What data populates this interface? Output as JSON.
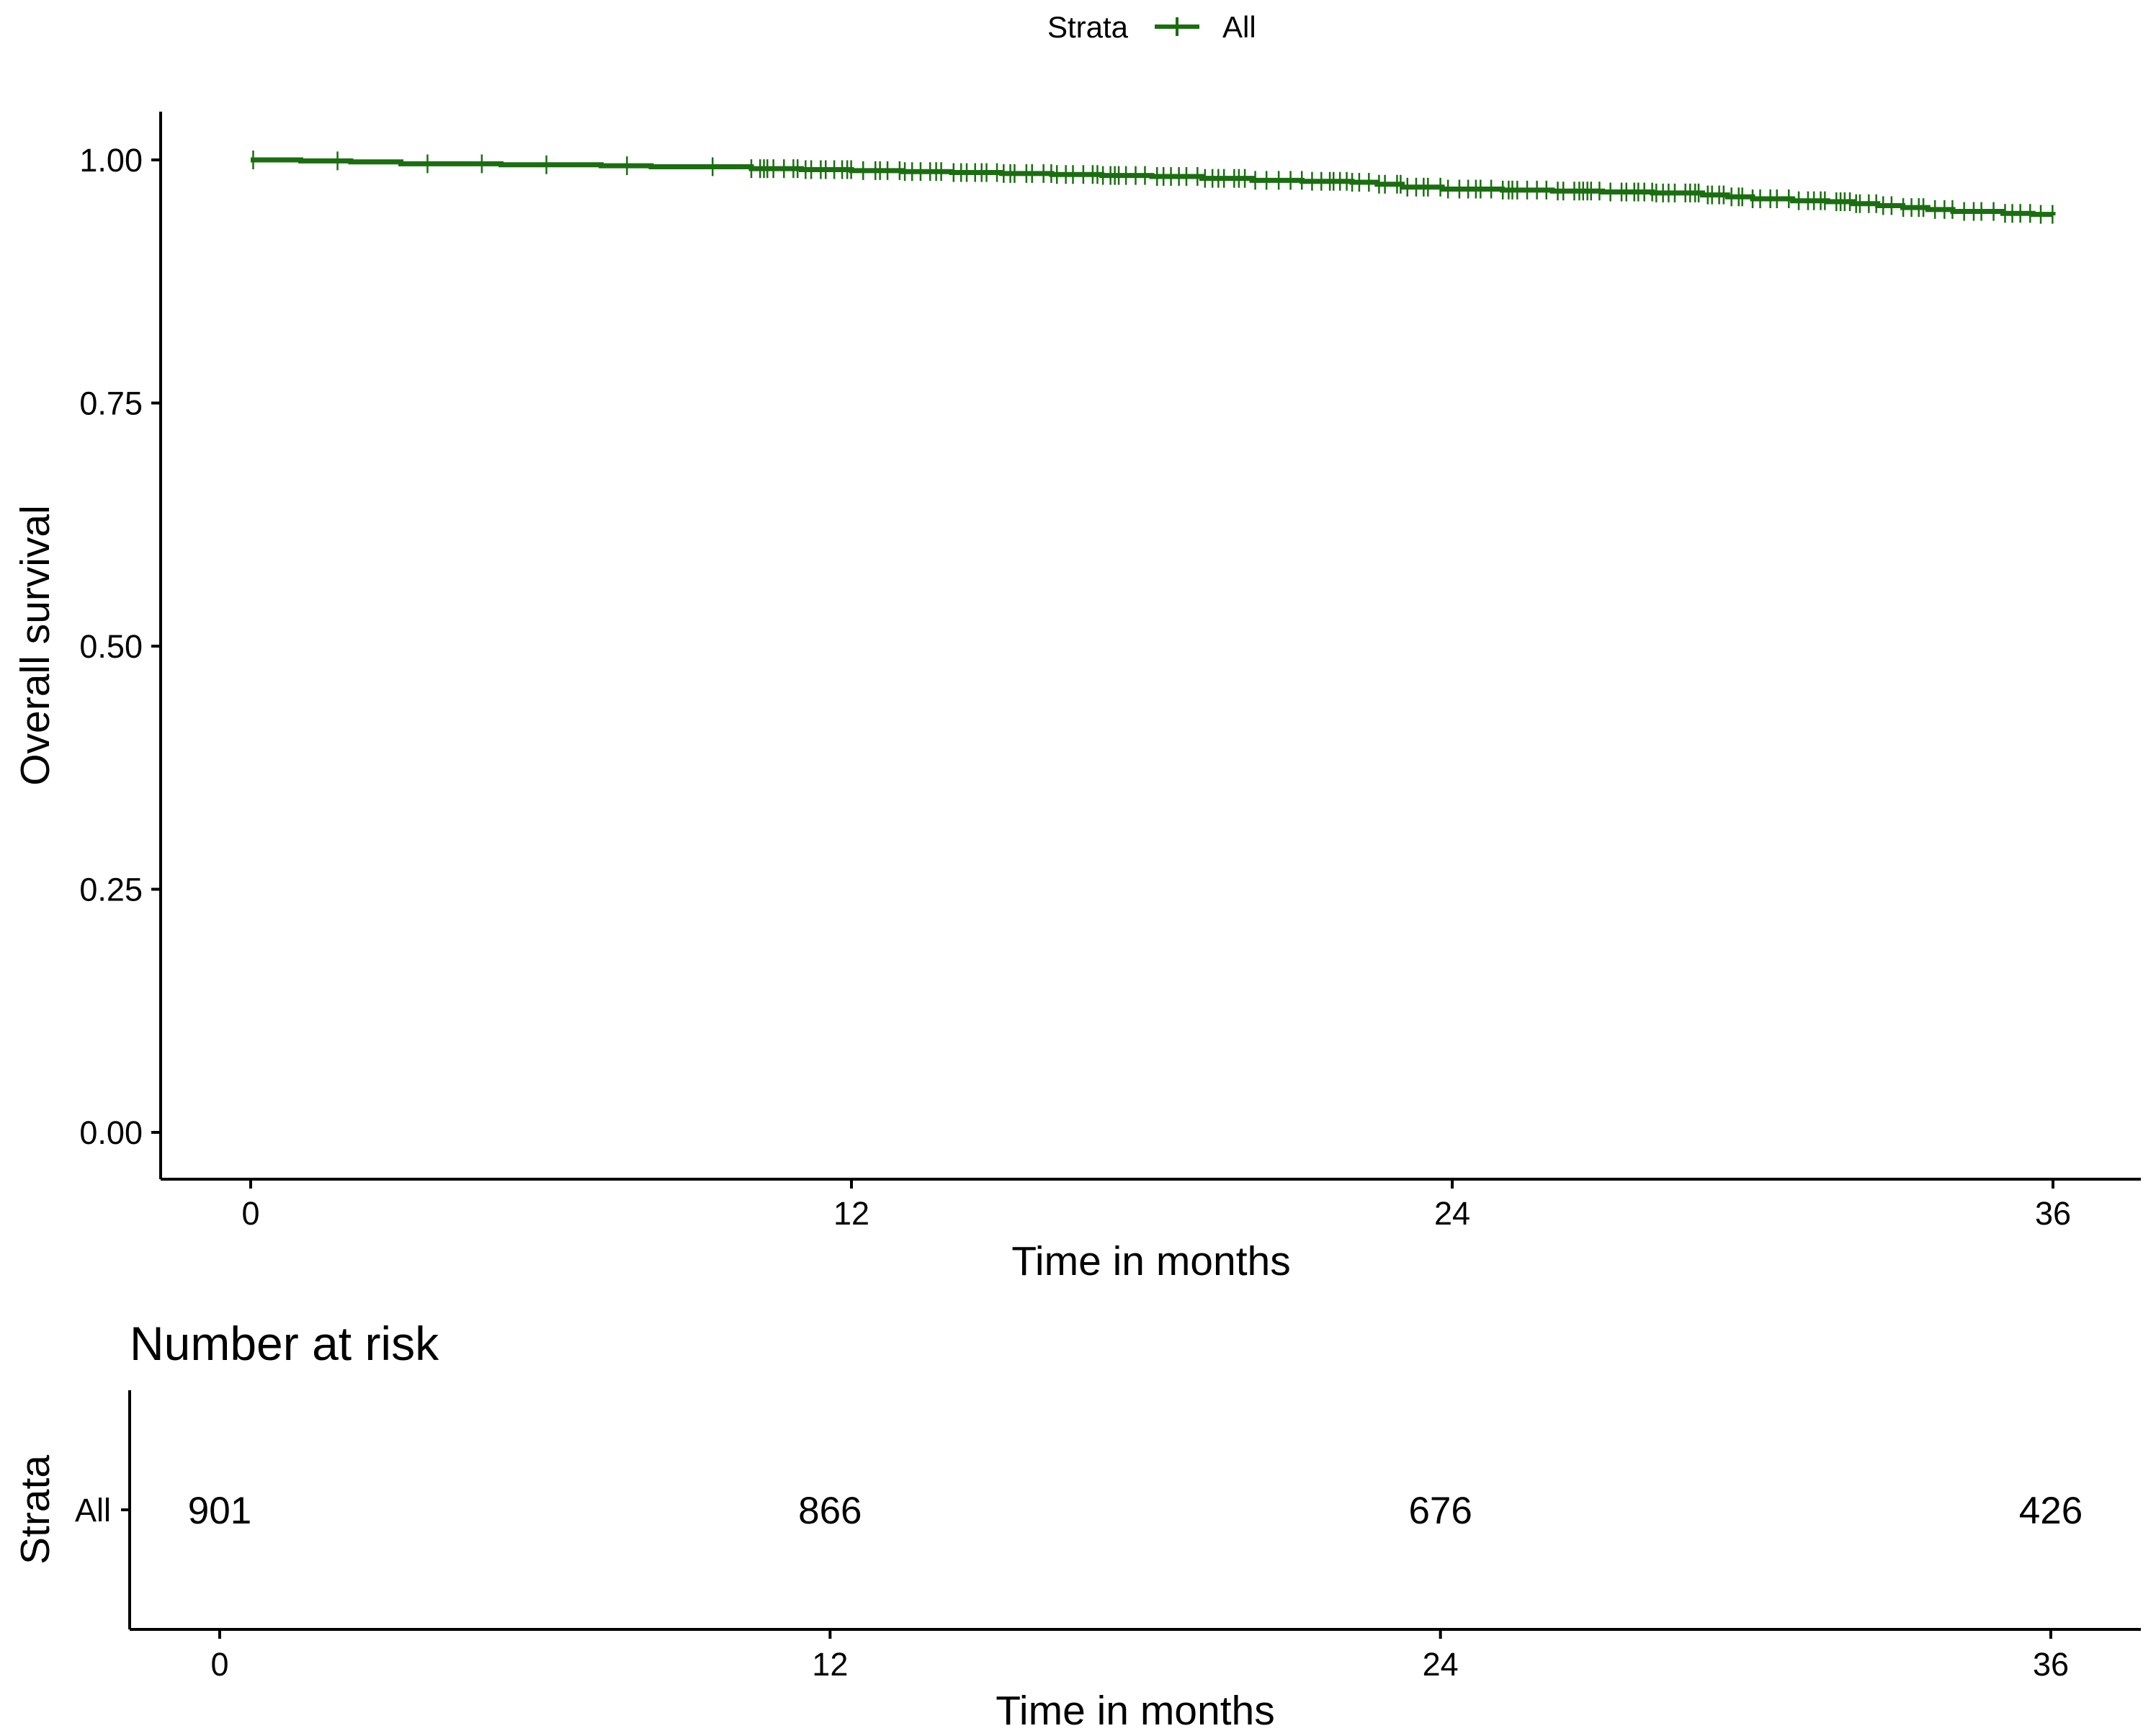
{
  "colors": {
    "strata_all": "#1a6e10",
    "axis": "#000000"
  },
  "legend": {
    "title": "Strata",
    "entries": [
      "All"
    ]
  },
  "chart_data": [
    {
      "type": "line",
      "subtype": "kaplan-meier",
      "title": "",
      "xlabel": "Time in months",
      "ylabel": "Overall survival",
      "xlim": [
        0,
        36
      ],
      "ylim": [
        0,
        1
      ],
      "xticks": [
        0,
        12,
        24,
        36
      ],
      "xtick_labels": [
        "0",
        "12",
        "24",
        "36"
      ],
      "yticks": [
        0,
        0.25,
        0.5,
        0.75,
        1
      ],
      "ytick_labels": [
        "0.00",
        "0.25",
        "0.50",
        "0.75",
        "1.00"
      ],
      "grid": false,
      "legend_position": "top",
      "series": [
        {
          "name": "All",
          "step": [
            [
              0,
              1.0
            ],
            [
              1.0,
              0.999
            ],
            [
              2.0,
              0.998
            ],
            [
              3.0,
              0.996
            ],
            [
              5.0,
              0.995
            ],
            [
              7.0,
              0.994
            ],
            [
              8.0,
              0.993
            ],
            [
              10.0,
              0.991
            ],
            [
              11.0,
              0.99
            ],
            [
              12.0,
              0.989
            ],
            [
              13.0,
              0.988
            ],
            [
              14.0,
              0.987
            ],
            [
              15.0,
              0.986
            ],
            [
              16.0,
              0.985
            ],
            [
              17.0,
              0.984
            ],
            [
              18.0,
              0.983
            ],
            [
              19.0,
              0.981
            ],
            [
              20.0,
              0.979
            ],
            [
              21.0,
              0.978
            ],
            [
              22.0,
              0.977
            ],
            [
              22.5,
              0.975
            ],
            [
              23.0,
              0.972
            ],
            [
              23.8,
              0.97
            ],
            [
              25.0,
              0.969
            ],
            [
              26.0,
              0.968
            ],
            [
              27.0,
              0.967
            ],
            [
              28.0,
              0.966
            ],
            [
              29.0,
              0.964
            ],
            [
              29.5,
              0.962
            ],
            [
              30.0,
              0.96
            ],
            [
              30.8,
              0.958
            ],
            [
              31.5,
              0.957
            ],
            [
              32.0,
              0.955
            ],
            [
              32.5,
              0.953
            ],
            [
              33.0,
              0.951
            ],
            [
              33.5,
              0.949
            ],
            [
              34.0,
              0.947
            ],
            [
              35.0,
              0.945
            ],
            [
              35.6,
              0.944
            ],
            [
              36.0,
              0.943
            ]
          ]
        }
      ]
    },
    {
      "type": "table",
      "title": "Number at risk",
      "xlabel": "Time in months",
      "ylabel": "Strata",
      "xlim": [
        0,
        36
      ],
      "xticks": [
        0,
        12,
        24,
        36
      ],
      "xtick_labels": [
        "0",
        "12",
        "24",
        "36"
      ],
      "rows": [
        {
          "name": "All",
          "times": [
            0,
            12,
            24,
            36
          ],
          "counts": [
            "901",
            "866",
            "676",
            "426"
          ]
        }
      ]
    }
  ]
}
